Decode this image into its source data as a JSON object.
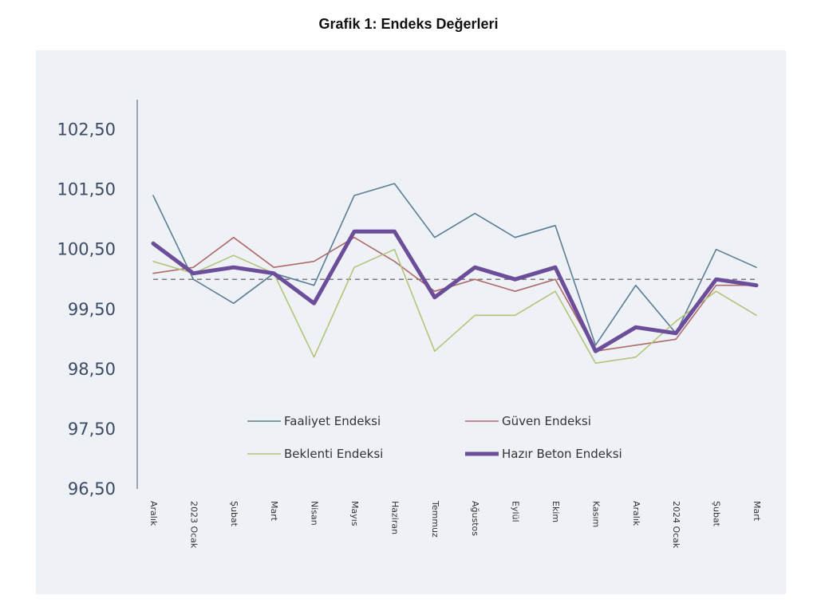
{
  "chart_data": {
    "type": "line",
    "title": "Grafik 1: Endeks Değerleri",
    "xlabel": "",
    "ylabel": "",
    "categories": [
      "Aralık",
      "2023 Ocak",
      "Şubat",
      "Mart",
      "Nisan",
      "Mayıs",
      "Haziran",
      "Temmuz",
      "Ağustos",
      "Eylül",
      "Ekim",
      "Kasım",
      "Aralık",
      "2024 Ocak",
      "Şubat",
      "Mart"
    ],
    "yticks": [
      "102,50",
      "101,50",
      "100,50",
      "99,50",
      "98,50",
      "97,50",
      "96,50"
    ],
    "ylim": [
      96.5,
      103.0
    ],
    "reference_line": 100,
    "grid": false,
    "legend_position": "bottom-inside",
    "series": [
      {
        "name": "Faaliyet Endeksi",
        "color": "#5b7c93",
        "width": 1.6,
        "values": [
          101.4,
          100.0,
          99.6,
          100.1,
          99.9,
          101.4,
          101.6,
          100.7,
          101.1,
          100.7,
          100.9,
          98.9,
          99.9,
          99.1,
          100.5,
          100.2
        ]
      },
      {
        "name": "Güven Endeksi",
        "color": "#b06a6a",
        "width": 1.6,
        "values": [
          100.1,
          100.2,
          100.7,
          100.2,
          100.3,
          100.7,
          100.3,
          99.8,
          100.0,
          99.8,
          100.0,
          98.8,
          98.9,
          99.0,
          99.9,
          99.9
        ]
      },
      {
        "name": "Beklenti Endeksi",
        "color": "#b3c47a",
        "width": 1.6,
        "values": [
          100.3,
          100.1,
          100.4,
          100.1,
          98.7,
          100.2,
          100.5,
          98.8,
          99.4,
          99.4,
          99.8,
          98.6,
          98.7,
          99.3,
          99.8,
          99.4
        ]
      },
      {
        "name": "Hazır Beton Endeksi",
        "color": "#6b4d9a",
        "width": 5,
        "values": [
          100.6,
          100.1,
          100.2,
          100.1,
          99.6,
          100.8,
          100.8,
          99.7,
          100.2,
          100.0,
          100.2,
          98.8,
          99.2,
          99.1,
          100.0,
          99.9
        ]
      }
    ]
  }
}
